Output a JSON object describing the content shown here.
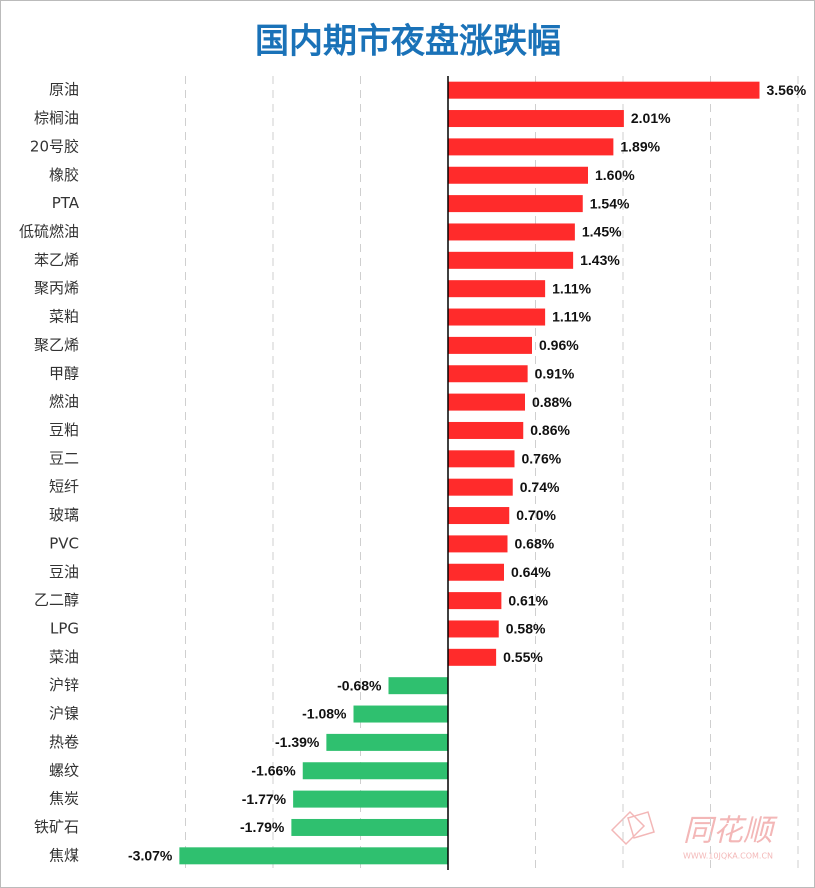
{
  "chart_data": {
    "type": "hbar",
    "title": "国内期市夜盘涨跌幅",
    "categories": [
      "原油",
      "棕榈油",
      "20号胶",
      "橡胶",
      "PTA",
      "低硫燃油",
      "苯乙烯",
      "聚丙烯",
      "菜粕",
      "聚乙烯",
      "甲醇",
      "燃油",
      "豆粕",
      "豆二",
      "短纤",
      "玻璃",
      "PVC",
      "豆油",
      "乙二醇",
      "LPG",
      "菜油",
      "沪锌",
      "沪镍",
      "热卷",
      "螺纹",
      "焦炭",
      "铁矿石",
      "焦煤"
    ],
    "values": [
      3.56,
      2.01,
      1.89,
      1.6,
      1.54,
      1.45,
      1.43,
      1.11,
      1.11,
      0.96,
      0.91,
      0.88,
      0.86,
      0.76,
      0.74,
      0.7,
      0.68,
      0.64,
      0.61,
      0.58,
      0.55,
      -0.68,
      -1.08,
      -1.39,
      -1.66,
      -1.77,
      -1.79,
      -3.07
    ],
    "value_labels": [
      "3.56%",
      "2.01%",
      "1.89%",
      "1.60%",
      "1.54%",
      "1.45%",
      "1.43%",
      "1.11%",
      "1.11%",
      "0.96%",
      "0.91%",
      "0.88%",
      "0.86%",
      "0.76%",
      "0.74%",
      "0.70%",
      "0.68%",
      "0.64%",
      "0.61%",
      "0.58%",
      "0.55%",
      "-0.68%",
      "-1.08%",
      "-1.39%",
      "-1.66%",
      "-1.77%",
      "-1.79%",
      "-3.07%"
    ],
    "positive_color": "#ff2b2b",
    "negative_color": "#2fc06f",
    "xlim": [
      -3.5,
      4.0
    ],
    "xticks": [
      -3,
      -2,
      -1,
      0,
      1,
      2,
      3,
      4
    ],
    "grid": true
  },
  "watermark": {
    "brand": "同花顺",
    "url": "WWW.10JQKA.COM.CN"
  }
}
